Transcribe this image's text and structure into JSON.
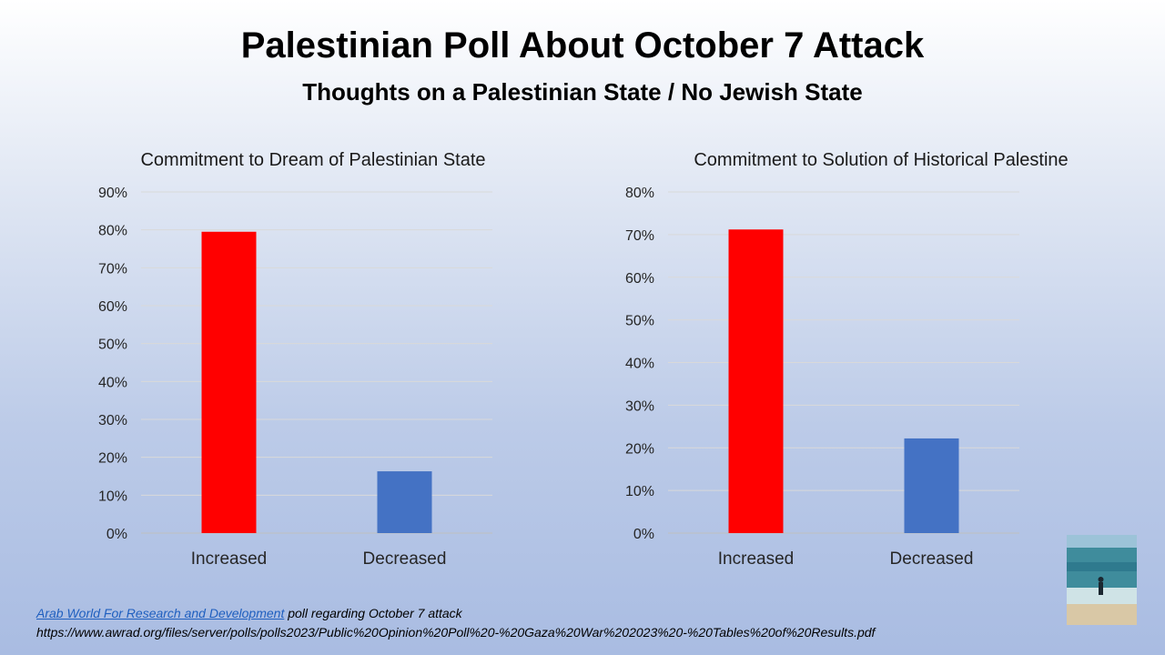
{
  "slide": {
    "title": "Palestinian Poll About October 7 Attack",
    "subtitle": "Thoughts on a Palestinian State / No Jewish State"
  },
  "chart_data": [
    {
      "type": "bar",
      "title": "Commitment to Dream of Palestinian State",
      "categories": [
        "Increased",
        "Decreased"
      ],
      "values": [
        79.5,
        16.3
      ],
      "value_unit": "%",
      "colors": [
        "#ff0000",
        "#4472c4"
      ],
      "ylim": [
        0,
        90
      ],
      "yticks": [
        0,
        10,
        20,
        30,
        40,
        50,
        60,
        70,
        80,
        90
      ],
      "ytick_labels": [
        "0%",
        "10%",
        "20%",
        "30%",
        "40%",
        "50%",
        "60%",
        "70%",
        "80%",
        "90%"
      ],
      "grid": true,
      "xlabel": "",
      "ylabel": ""
    },
    {
      "type": "bar",
      "title": "Commitment to Solution of Historical Palestine",
      "categories": [
        "Increased",
        "Decreased"
      ],
      "values": [
        71.2,
        22.2
      ],
      "value_unit": "%",
      "colors": [
        "#ff0000",
        "#4472c4"
      ],
      "ylim": [
        0,
        80
      ],
      "yticks": [
        0,
        10,
        20,
        30,
        40,
        50,
        60,
        70,
        80
      ],
      "ytick_labels": [
        "0%",
        "10%",
        "20%",
        "30%",
        "40%",
        "50%",
        "60%",
        "70%",
        "80%"
      ],
      "grid": true,
      "xlabel": "",
      "ylabel": ""
    }
  ],
  "source": {
    "link_text": "Arab World For Research and Development",
    "text": " poll regarding October 7 attack",
    "url_line": "https://www.awrad.org/files/server/polls/polls2023/Public%20Opinion%20Poll%20-%20Gaza%20War%202023%20-%20Tables%20of%20Results.pdf"
  },
  "photo": {
    "icon": "beach-photo-icon"
  }
}
